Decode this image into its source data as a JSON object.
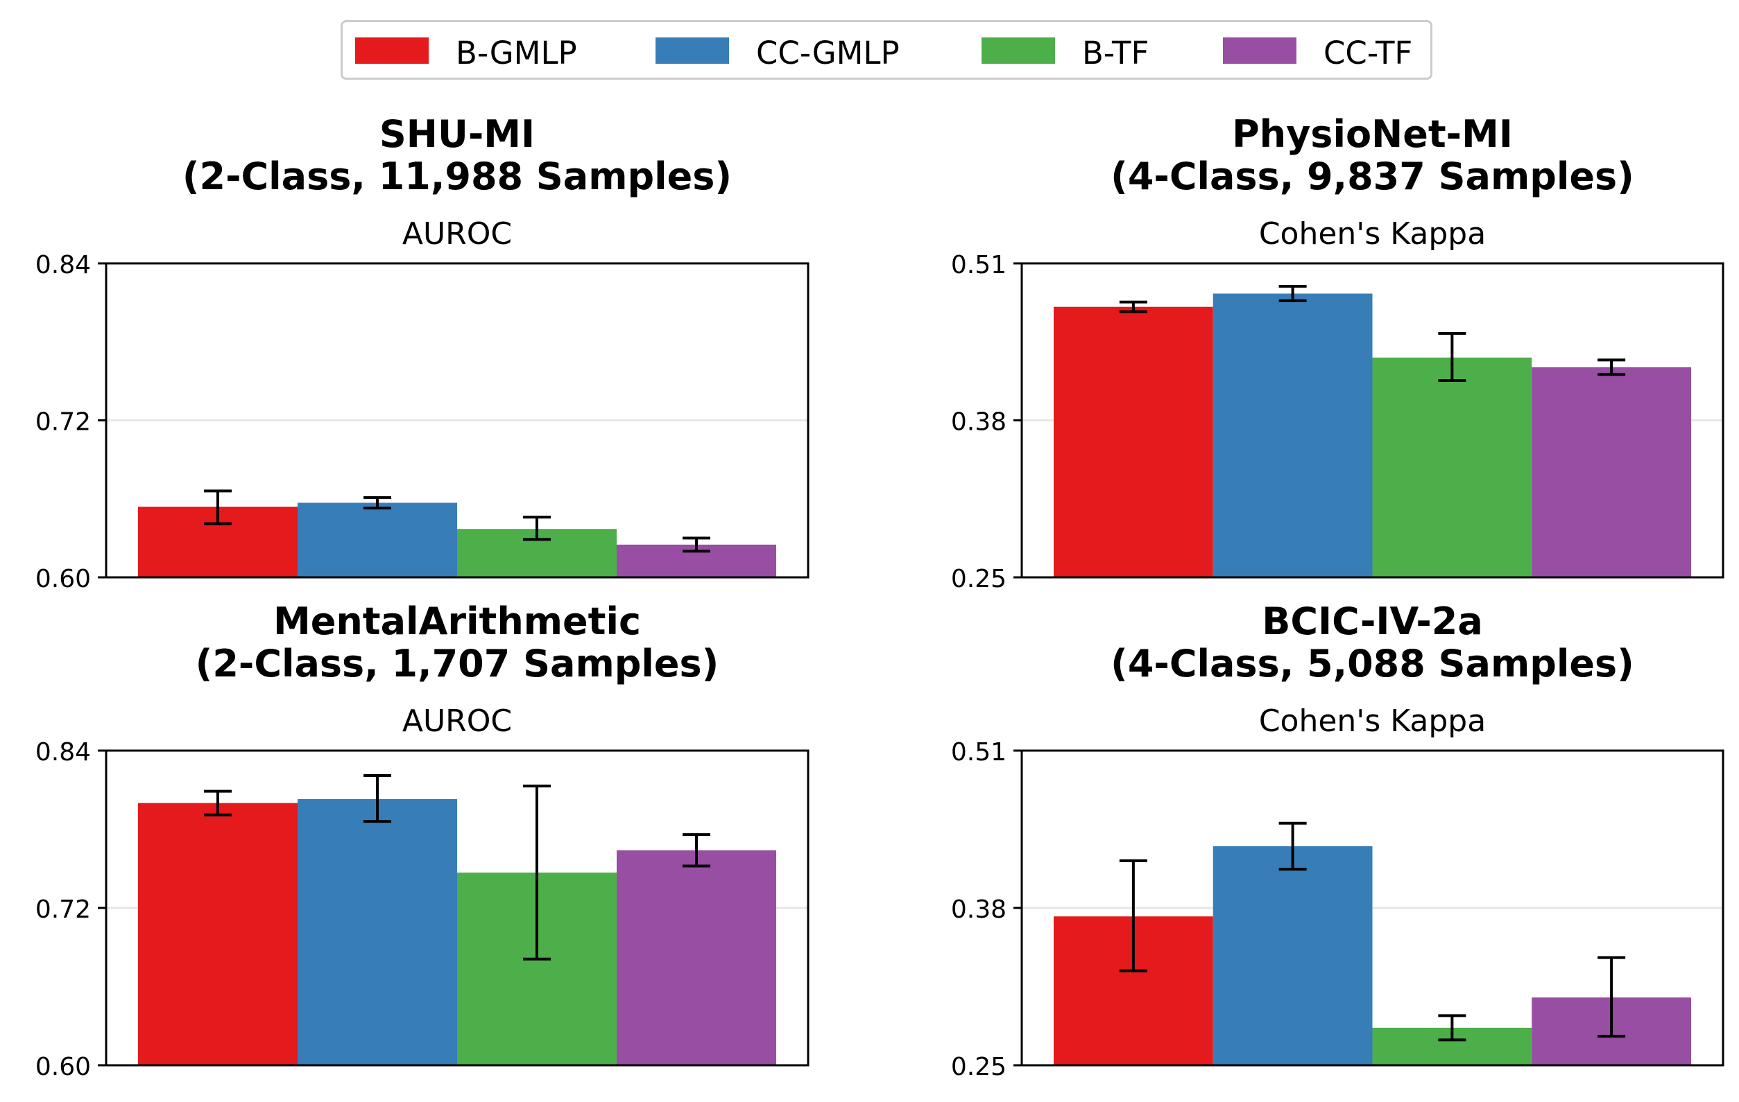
{
  "legend": [
    {
      "label": "B-GMLP",
      "color": "#e41a1c"
    },
    {
      "label": "CC-GMLP",
      "color": "#377eb8"
    },
    {
      "label": "B-TF",
      "color": "#4daf4a"
    },
    {
      "label": "CC-TF",
      "color": "#984ea3"
    }
  ],
  "chart_data": [
    {
      "type": "bar",
      "title": "SHU-MI",
      "subtitle": "(2-Class, 11,988 Samples)",
      "metric": "AUROC",
      "ylim": [
        0.6,
        0.84
      ],
      "yticks": [
        "0.60",
        "0.72",
        "0.84"
      ],
      "grid": "horizontal at middle tick",
      "series": [
        {
          "name": "B-GMLP",
          "value": 0.654,
          "error": [
            0.641,
            0.666
          ]
        },
        {
          "name": "CC-GMLP",
          "value": 0.657,
          "error": [
            0.653,
            0.661
          ]
        },
        {
          "name": "B-TF",
          "value": 0.637,
          "error": [
            0.629,
            0.646
          ]
        },
        {
          "name": "CC-TF",
          "value": 0.625,
          "error": [
            0.62,
            0.63
          ]
        }
      ]
    },
    {
      "type": "bar",
      "title": "PhysioNet-MI",
      "subtitle": "(4-Class, 9,837 Samples)",
      "metric": "Cohen's Kappa",
      "ylim": [
        0.25,
        0.51
      ],
      "yticks": [
        "0.25",
        "0.38",
        "0.51"
      ],
      "grid": "horizontal at middle tick",
      "series": [
        {
          "name": "B-GMLP",
          "value": 0.474,
          "error": [
            0.47,
            0.478
          ]
        },
        {
          "name": "CC-GMLP",
          "value": 0.485,
          "error": [
            0.479,
            0.491
          ]
        },
        {
          "name": "B-TF",
          "value": 0.432,
          "error": [
            0.413,
            0.452
          ]
        },
        {
          "name": "CC-TF",
          "value": 0.424,
          "error": [
            0.418,
            0.43
          ]
        }
      ]
    },
    {
      "type": "bar",
      "title": "MentalArithmetic",
      "subtitle": "(2-Class, 1,707 Samples)",
      "metric": "AUROC",
      "ylim": [
        0.6,
        0.84
      ],
      "yticks": [
        "0.60",
        "0.72",
        "0.84"
      ],
      "grid": "horizontal at middle tick",
      "series": [
        {
          "name": "B-GMLP",
          "value": 0.8,
          "error": [
            0.791,
            0.809
          ]
        },
        {
          "name": "CC-GMLP",
          "value": 0.803,
          "error": [
            0.786,
            0.821
          ]
        },
        {
          "name": "B-TF",
          "value": 0.747,
          "error": [
            0.681,
            0.813
          ]
        },
        {
          "name": "CC-TF",
          "value": 0.764,
          "error": [
            0.752,
            0.776
          ]
        }
      ]
    },
    {
      "type": "bar",
      "title": "BCIC-IV-2a",
      "subtitle": "(4-Class, 5,088 Samples)",
      "metric": "Cohen's Kappa",
      "ylim": [
        0.25,
        0.51
      ],
      "yticks": [
        "0.25",
        "0.38",
        "0.51"
      ],
      "grid": "horizontal at middle tick",
      "series": [
        {
          "name": "B-GMLP",
          "value": 0.373,
          "error": [
            0.328,
            0.419
          ]
        },
        {
          "name": "CC-GMLP",
          "value": 0.431,
          "error": [
            0.412,
            0.45
          ]
        },
        {
          "name": "B-TF",
          "value": 0.281,
          "error": [
            0.271,
            0.291
          ]
        },
        {
          "name": "CC-TF",
          "value": 0.306,
          "error": [
            0.274,
            0.339
          ]
        }
      ]
    }
  ]
}
